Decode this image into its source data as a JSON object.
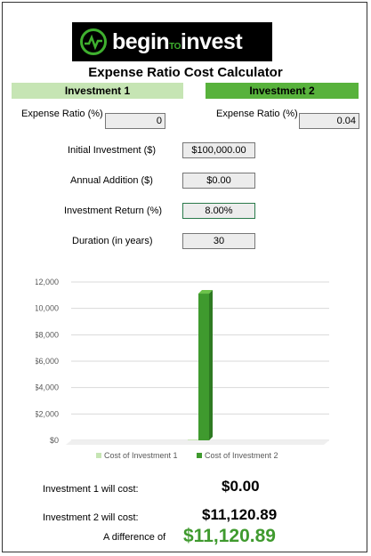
{
  "logo": {
    "brand_begin": "begin",
    "brand_to": "TO",
    "brand_invest": "invest"
  },
  "title": "Expense Ratio Cost Calculator",
  "investment1": {
    "header": "Investment 1",
    "expense_ratio_label": "Expense Ratio (%)",
    "expense_ratio_value": "0"
  },
  "investment2": {
    "header": "Investment 2",
    "expense_ratio_label": "Expense Ratio (%)",
    "expense_ratio_value": "0.04"
  },
  "inputs": {
    "initial_label": "Initial Investment ($)",
    "initial_value": "$100,000.00",
    "annual_label": "Annual Addition ($)",
    "annual_value": "$0.00",
    "return_label": "Investment Return (%)",
    "return_value": "8.00%",
    "duration_label": "Duration (in years)",
    "duration_value": "30"
  },
  "colors": {
    "series1": "#c6e5b4",
    "series2": "#3f9a2e"
  },
  "chart_data": {
    "type": "bar",
    "categories": [
      ""
    ],
    "series": [
      {
        "name": "Cost of Investment 1",
        "values": [
          0
        ]
      },
      {
        "name": "Cost of Investment 2",
        "values": [
          11120.89
        ]
      }
    ],
    "y_ticks": [
      "$0",
      "$2,000",
      "$4,000",
      "$6,000",
      "$8,000",
      "$10,000",
      "$12,000"
    ],
    "ylim": [
      0,
      12000
    ],
    "grid": true,
    "legend": "bottom"
  },
  "results": {
    "inv1_label": "Investment 1 will cost:",
    "inv1_value": "$0.00",
    "inv2_label": "Investment 2 will cost:",
    "inv2_value": "$11,120.89",
    "diff_label": "A difference of",
    "diff_value": "$11,120.89"
  }
}
